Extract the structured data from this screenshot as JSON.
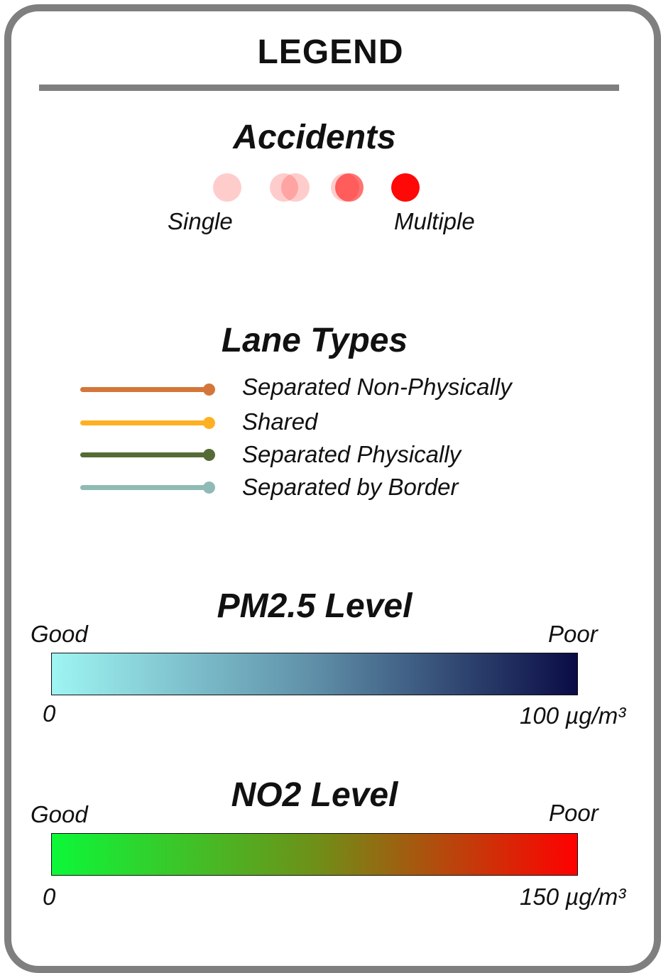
{
  "legend": {
    "title": "LEGEND",
    "accidents": {
      "title": "Accidents",
      "label_low": "Single",
      "label_high": "Multiple",
      "dot_color": "#ff0000"
    },
    "lanes": {
      "title": "Lane Types",
      "items": [
        {
          "label": "Separated Non-Physically",
          "color": "#d4763a"
        },
        {
          "label": "Shared",
          "color": "#ffb020"
        },
        {
          "label": "Separated Physically",
          "color": "#556b35"
        },
        {
          "label": "Separated by Border",
          "color": "#8fbab6"
        }
      ]
    },
    "pm25": {
      "title": "PM2.5 Level",
      "good_label": "Good",
      "poor_label": "Poor",
      "min_label": "0",
      "max_label": "100 µg/m³",
      "color_start": "#9ef5f2",
      "color_end": "#0a0c45"
    },
    "no2": {
      "title": "NO2 Level",
      "good_label": "Good",
      "poor_label": "Poor",
      "min_label": "0",
      "max_label": "150 µg/m³",
      "color_start": "#0cf838",
      "color_end": "#ff0000"
    }
  }
}
